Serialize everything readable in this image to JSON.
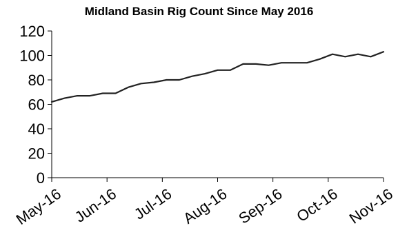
{
  "chart_data": {
    "type": "line",
    "title": "Midland Basin Rig Count Since May 2016",
    "xlabel": "",
    "ylabel": "",
    "ylim": [
      0,
      120
    ],
    "y_ticks": [
      0,
      20,
      40,
      60,
      80,
      100,
      120
    ],
    "x_ticks": [
      "May-16",
      "Jun-16",
      "Jul-16",
      "Aug-16",
      "Sep-16",
      "Oct-16",
      "Nov-16"
    ],
    "grid": false,
    "legend": "none",
    "line_color": "#222222",
    "series": [
      {
        "values": [
          62,
          65,
          67,
          67,
          69,
          69,
          74,
          77,
          78,
          80,
          80,
          83,
          85,
          88,
          88,
          93,
          93,
          92,
          94,
          94,
          94,
          97,
          101,
          99,
          101,
          99,
          103
        ]
      }
    ]
  }
}
